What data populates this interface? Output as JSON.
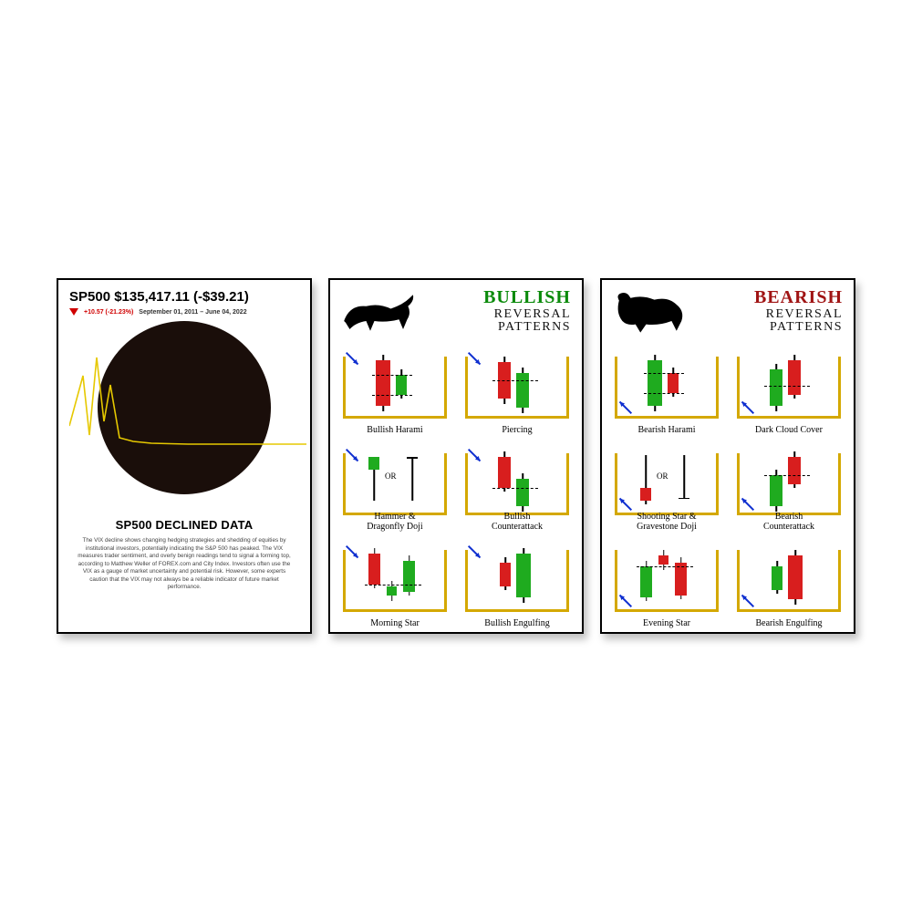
{
  "poster1": {
    "title": "SP500 $135,417.11 (-$39.21)",
    "change_text": "+10.57 (-21.23%)",
    "date_text": "September 01, 2011 – June 04, 2022",
    "circle_color": "#1a0e0a",
    "line_color": "#e6c800",
    "heading": "SP500 DECLINED DATA",
    "body": "The VIX decline shows changing hedging strategies and shedding of equities by institutional investors, potentially indicating the S&P 500 has peaked. The VIX measures trader sentiment, and overly benign readings tend to signal a forming top, according to Matthew Weller of FOREX.com and City Index. Investors often use the VIX as a gauge of market uncertainty and potential risk. However, some experts caution that the VIX may not always be a reliable indicator of future market performance.",
    "line_points": [
      [
        0,
        115
      ],
      [
        15,
        60
      ],
      [
        22,
        125
      ],
      [
        30,
        40
      ],
      [
        38,
        110
      ],
      [
        45,
        70
      ],
      [
        55,
        128
      ],
      [
        70,
        132
      ],
      [
        90,
        134
      ],
      [
        130,
        135
      ],
      [
        190,
        135
      ],
      [
        260,
        135
      ]
    ]
  },
  "poster2": {
    "title_top": "BULLISH",
    "title_bottom_1": "REVERSAL",
    "title_bottom_2": "PATTERNS",
    "title_color": "#0a8a0a",
    "bracket_color": "#d4a800",
    "arrow_color": "#1030d0",
    "green": "#1fab1f",
    "red": "#d81e1e",
    "cells": [
      {
        "label": "Bullish Harami"
      },
      {
        "label": "Piercing"
      },
      {
        "label": "Hammer &\nDragonfly Doji"
      },
      {
        "label": "Bullish\nCounterattack"
      },
      {
        "label": "Morning Star"
      },
      {
        "label": "Bullish Engulfing"
      }
    ]
  },
  "poster3": {
    "title_top": "BEARISH",
    "title_bottom_1": "REVERSAL",
    "title_bottom_2": "PATTERNS",
    "title_color": "#a01414",
    "bracket_color": "#d4a800",
    "arrow_color": "#1030d0",
    "green": "#1fab1f",
    "red": "#d81e1e",
    "cells": [
      {
        "label": "Bearish Harami"
      },
      {
        "label": "Dark Cloud Cover"
      },
      {
        "label": "Shooting Star &\nGravestone Doji"
      },
      {
        "label": "Bearish\nCounterattack"
      },
      {
        "label": "Evening Star"
      },
      {
        "label": "Bearish Engulfing"
      }
    ]
  }
}
